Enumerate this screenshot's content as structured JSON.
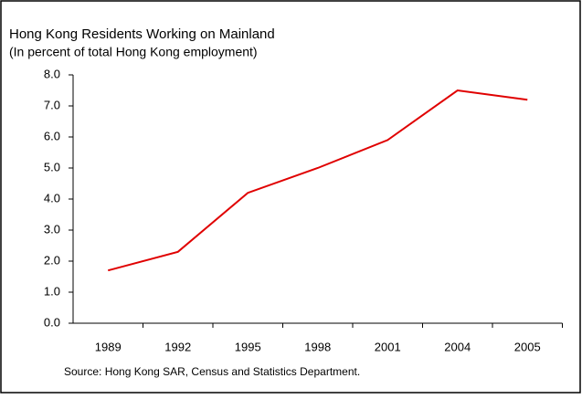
{
  "chart_data": {
    "type": "line",
    "title": "Hong Kong Residents Working on Mainland",
    "subtitle": "(In percent of total Hong Kong employment)",
    "source": "Source: Hong Kong SAR, Census and Statistics Department.",
    "categories": [
      "1989",
      "1992",
      "1995",
      "1998",
      "2001",
      "2004",
      "2005"
    ],
    "values": [
      1.7,
      2.3,
      4.2,
      5.0,
      5.9,
      7.5,
      7.2
    ],
    "color": "#e00000",
    "ylim": [
      0,
      8
    ],
    "yticks": [
      {
        "value": 0,
        "label": "0.0"
      },
      {
        "value": 1,
        "label": "1.0"
      },
      {
        "value": 2,
        "label": "2.0"
      },
      {
        "value": 3,
        "label": "3.0"
      },
      {
        "value": 4,
        "label": "4.0"
      },
      {
        "value": 5,
        "label": "5.0"
      },
      {
        "value": 6,
        "label": "6.0"
      },
      {
        "value": 7,
        "label": "7.0"
      },
      {
        "value": 8,
        "label": "8.0"
      }
    ],
    "grid": false
  }
}
